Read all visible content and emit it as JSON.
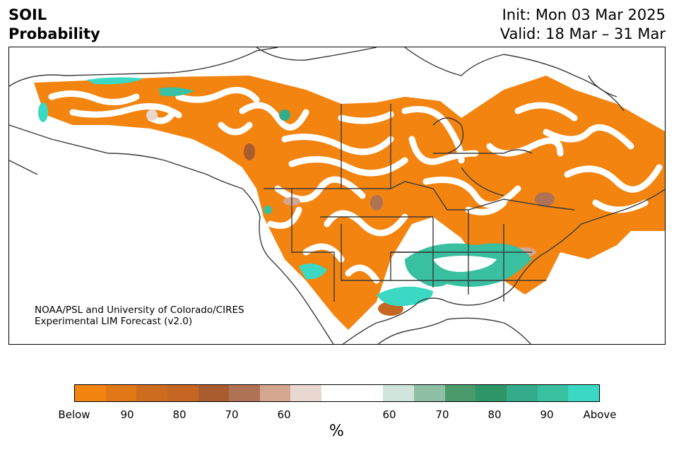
{
  "title": {
    "line1": "SOIL",
    "line2": "Probability"
  },
  "header": {
    "init": "Init: Mon 03 Mar 2025",
    "valid": "Valid: 18 Mar – 31 Mar"
  },
  "credit": {
    "line1": "NOAA/PSL and University of Colorado/CIRES",
    "line2": "Experimental LIM Forecast (v2.0)"
  },
  "colorbar": {
    "colors": [
      "#f2840f",
      "#e07816",
      "#cd6c1f",
      "#c56722",
      "#a95c2f",
      "#b07255",
      "#d4a690",
      "#e8d8cf",
      "#ffffff",
      "#ffffff",
      "#cfe4da",
      "#8fbfa5",
      "#4a9a6c",
      "#2e9566",
      "#34ab8a",
      "#38c0a1",
      "#3bd9c3"
    ],
    "ticks": [
      "Below",
      "90",
      "80",
      "70",
      "60",
      "60",
      "70",
      "80",
      "90",
      "Above"
    ],
    "unit": "%"
  }
}
